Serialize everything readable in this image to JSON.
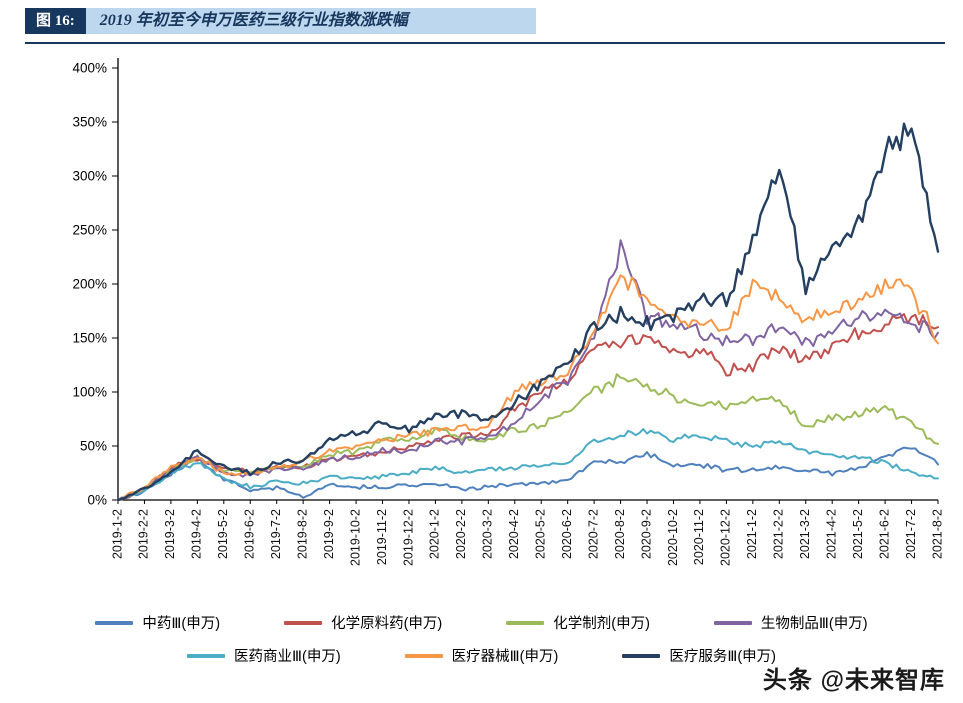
{
  "header": {
    "figure_label": "图 16:",
    "title": "2019 年初至今申万医药三级行业指数涨跌幅"
  },
  "watermark": "头条 @未来智库",
  "colors": {
    "header_bar": "#17375E",
    "header_bg": "#BDD7EE",
    "rule": "#17375E",
    "axis": "#000000"
  },
  "chart_data": {
    "type": "line",
    "title": "2019 年初至今申万医药三级行业指数涨跌幅",
    "xlabel": "",
    "ylabel": "",
    "ylim": [
      0,
      400
    ],
    "ytick_step": 50,
    "ytick_suffix": "%",
    "grid": false,
    "legend_position": "bottom",
    "x": [
      "2019-1-2",
      "2019-2-2",
      "2019-3-2",
      "2019-4-2",
      "2019-5-2",
      "2019-6-2",
      "2019-7-2",
      "2019-8-2",
      "2019-9-2",
      "2019-10-2",
      "2019-11-2",
      "2019-12-2",
      "2020-1-2",
      "2020-2-2",
      "2020-3-2",
      "2020-4-2",
      "2020-5-2",
      "2020-6-2",
      "2020-7-2",
      "2020-8-2",
      "2020-9-2",
      "2020-10-2",
      "2020-11-2",
      "2020-12-2",
      "2021-1-2",
      "2021-2-2",
      "2021-3-2",
      "2021-4-2",
      "2021-5-2",
      "2021-6-2",
      "2021-7-2",
      "2021-8-2"
    ],
    "series": [
      {
        "name": "中药Ⅲ(申万)",
        "color": "#4F81BD",
        "values": [
          0,
          8,
          25,
          38,
          20,
          8,
          12,
          3,
          15,
          12,
          12,
          14,
          15,
          10,
          12,
          15,
          15,
          18,
          35,
          35,
          42,
          32,
          32,
          28,
          28,
          30,
          28,
          25,
          30,
          40,
          50,
          33
        ]
      },
      {
        "name": "化学原料药(申万)",
        "color": "#C0504D",
        "values": [
          0,
          10,
          30,
          38,
          30,
          25,
          30,
          30,
          38,
          40,
          45,
          50,
          55,
          60,
          60,
          85,
          100,
          110,
          140,
          145,
          150,
          135,
          140,
          120,
          125,
          140,
          130,
          140,
          155,
          165,
          170,
          160
        ]
      },
      {
        "name": "化学制剂(申万)",
        "color": "#9BBB59",
        "values": [
          0,
          10,
          28,
          40,
          28,
          25,
          30,
          30,
          42,
          45,
          55,
          55,
          65,
          58,
          55,
          65,
          70,
          80,
          100,
          115,
          105,
          95,
          90,
          85,
          95,
          90,
          70,
          75,
          80,
          85,
          70,
          52
        ]
      },
      {
        "name": "生物制品Ⅲ(申万)",
        "color": "#8064A2",
        "values": [
          0,
          10,
          28,
          40,
          25,
          22,
          30,
          28,
          38,
          40,
          45,
          45,
          55,
          55,
          58,
          70,
          95,
          110,
          150,
          235,
          170,
          160,
          155,
          150,
          148,
          160,
          145,
          155,
          170,
          170,
          165,
          155
        ]
      },
      {
        "name": "医药商业Ⅲ(申万)",
        "color": "#4BACC6",
        "values": [
          0,
          8,
          25,
          35,
          20,
          12,
          18,
          15,
          22,
          20,
          22,
          25,
          30,
          26,
          28,
          30,
          32,
          35,
          55,
          60,
          65,
          55,
          60,
          55,
          50,
          55,
          45,
          40,
          40,
          35,
          25,
          20
        ]
      },
      {
        "name": "医疗器械Ⅲ(申万)",
        "color": "#F79646",
        "values": [
          0,
          12,
          30,
          40,
          25,
          25,
          30,
          35,
          45,
          50,
          55,
          60,
          65,
          65,
          70,
          100,
          110,
          118,
          158,
          205,
          188,
          165,
          165,
          160,
          200,
          185,
          165,
          175,
          185,
          200,
          195,
          145
        ]
      },
      {
        "name": "医疗服务Ⅲ(申万)",
        "color": "#243F60",
        "values": [
          0,
          10,
          25,
          45,
          30,
          25,
          35,
          35,
          55,
          62,
          72,
          65,
          80,
          80,
          72,
          90,
          108,
          128,
          160,
          172,
          162,
          172,
          185,
          185,
          240,
          315,
          195,
          235,
          260,
          320,
          345,
          230
        ]
      }
    ]
  }
}
